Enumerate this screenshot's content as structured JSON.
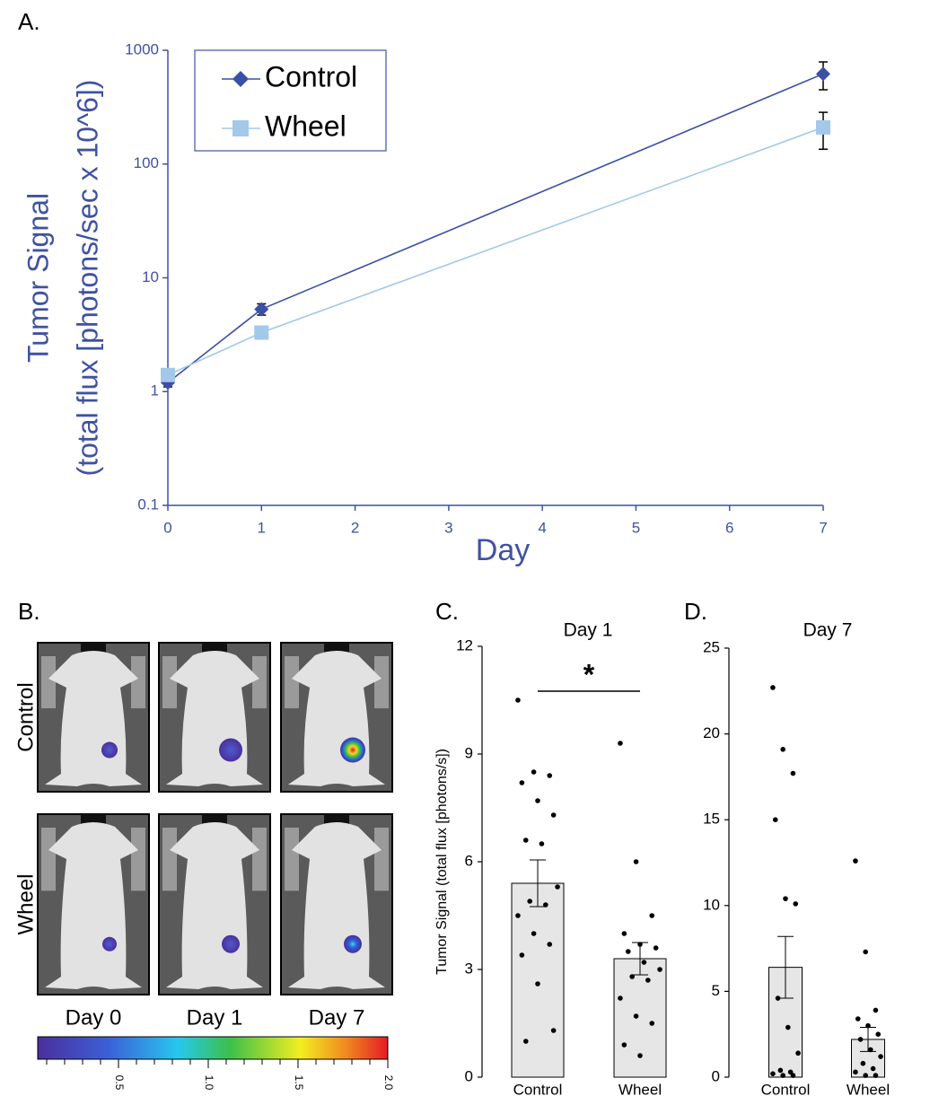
{
  "chart_data": [
    {
      "type": "line",
      "panel_label": "A.",
      "ylabel": [
        "Tumor Signal",
        "(total flux [photons/sec x 10^6])"
      ],
      "xlabel": "Day",
      "x": [
        0,
        1,
        7
      ],
      "xlim": [
        0,
        7
      ],
      "xticks": [
        0,
        1,
        2,
        3,
        4,
        5,
        6,
        7
      ],
      "ylim": [
        0.1,
        1000
      ],
      "yticks": [
        0.1,
        1,
        10,
        100,
        1000
      ],
      "log_y": true,
      "legend": "upper left",
      "series": [
        {
          "name": "Control",
          "color": "#3b4fa5",
          "marker": "diamond",
          "values": [
            1.2,
            5.3,
            620
          ],
          "errors": [
            0.1,
            0.6,
            170
          ]
        },
        {
          "name": "Wheel",
          "color": "#a3c8ea",
          "marker": "square",
          "values": [
            1.4,
            3.3,
            210
          ],
          "errors": [
            0.15,
            0.4,
            75
          ]
        }
      ]
    },
    {
      "type": "image",
      "panel_label": "B.",
      "row_labels": [
        "Control",
        "Wheel"
      ],
      "col_labels": [
        "Day 0",
        "Day 1",
        "Day 7"
      ],
      "colorbar": {
        "clim": [
          0.05,
          2
        ],
        "ticks": [
          0.5,
          {
            "value": 1,
            "label": "1.0"
          },
          1.5,
          {
            "value": 2,
            "label": "2.0"
          }
        ],
        "minor_ticks": [
          0.1,
          0.2,
          0.3,
          0.4,
          0.6,
          0.7,
          0.8,
          0.9,
          1.1,
          1.2,
          1.3,
          1.4,
          1.6,
          1.7,
          1.8,
          1.9
        ]
      }
    },
    {
      "type": "bar",
      "panel_label": "C.",
      "title": "Day 1",
      "ylabel": "Tumor Signal (total flux [photons/s])",
      "categories": [
        "Control",
        "Wheel"
      ],
      "values": [
        5.4,
        3.3
      ],
      "errors": [
        0.65,
        0.45
      ],
      "points": [
        [
          10.5,
          8.5,
          8.4,
          8.2,
          7.7,
          7.3,
          6.6,
          6.5,
          5.3,
          4.9,
          4.8,
          4.5,
          4.0,
          3.7,
          3.4,
          2.6,
          1.3,
          1.0
        ],
        [
          9.3,
          6.0,
          4.5,
          4.0,
          3.7,
          3.6,
          3.5,
          3.2,
          3.0,
          2.8,
          2.7,
          2.2,
          1.7,
          1.5,
          0.9,
          0.6
        ]
      ],
      "significance": "*",
      "color": "#e6e6e6",
      "ylim": [
        0,
        12
      ],
      "yticks": [
        0,
        3,
        6,
        9,
        12
      ]
    },
    {
      "type": "bar",
      "panel_label": "D.",
      "title": "Day 7",
      "categories": [
        "Control",
        "Wheel"
      ],
      "values": [
        6.4,
        2.2
      ],
      "errors": [
        1.8,
        0.7
      ],
      "points": [
        [
          22.7,
          19.1,
          17.7,
          15.0,
          10.4,
          10.1,
          4.6,
          2.9,
          1.4,
          0.4,
          0.3,
          0.2,
          0.1,
          0.1
        ],
        [
          12.6,
          7.3,
          3.9,
          3.4,
          3.0,
          2.5,
          2.2,
          1.6,
          1.2,
          0.8,
          0.5,
          0.3,
          0.1,
          0.1
        ]
      ],
      "color": "#e6e6e6",
      "ylim": [
        0,
        25
      ],
      "yticks": [
        0,
        5,
        10,
        15,
        20,
        25
      ]
    }
  ]
}
